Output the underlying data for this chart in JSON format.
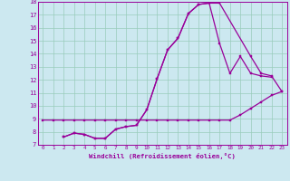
{
  "xlabel": "Windchill (Refroidissement éolien,°C)",
  "bg_color": "#cce8f0",
  "line_color": "#990099",
  "grid_color": "#99ccbb",
  "xlim": [
    -0.5,
    23.5
  ],
  "ylim": [
    7,
    18
  ],
  "xticks": [
    0,
    1,
    2,
    3,
    4,
    5,
    6,
    7,
    8,
    9,
    10,
    11,
    12,
    13,
    14,
    15,
    16,
    17,
    18,
    19,
    20,
    21,
    22,
    23
  ],
  "yticks": [
    7,
    8,
    9,
    10,
    11,
    12,
    13,
    14,
    15,
    16,
    17,
    18
  ],
  "series1_x": [
    0,
    1,
    2,
    3,
    4,
    5,
    6,
    7,
    8,
    9,
    10,
    11,
    12,
    13,
    14,
    15,
    16,
    17,
    18,
    19,
    20,
    21,
    22,
    23
  ],
  "series1_y": [
    8.9,
    8.9,
    8.9,
    8.9,
    8.9,
    8.9,
    8.9,
    8.9,
    8.9,
    8.9,
    8.9,
    8.9,
    8.9,
    8.9,
    8.9,
    8.9,
    8.9,
    8.9,
    8.9,
    9.3,
    9.8,
    10.3,
    10.8,
    11.1
  ],
  "series2_x": [
    2,
    3,
    4,
    5,
    6,
    7,
    8,
    9,
    10,
    11,
    12,
    13,
    14,
    15,
    16,
    17,
    18,
    19,
    20,
    21,
    22
  ],
  "series2_y": [
    7.6,
    7.9,
    7.8,
    7.5,
    7.5,
    8.2,
    8.4,
    8.5,
    9.7,
    12.1,
    14.3,
    15.2,
    17.1,
    17.8,
    17.9,
    14.8,
    12.5,
    13.8,
    12.5,
    12.3,
    12.2
  ],
  "series3_x": [
    2,
    3,
    4,
    5,
    6,
    7,
    8,
    9,
    10,
    11,
    12,
    13,
    14,
    15,
    16,
    17,
    20,
    21,
    22,
    23
  ],
  "series3_y": [
    7.6,
    7.9,
    7.8,
    7.5,
    7.5,
    8.2,
    8.4,
    8.5,
    9.7,
    12.1,
    14.3,
    15.2,
    17.1,
    17.8,
    17.9,
    17.9,
    13.8,
    12.5,
    12.3,
    11.1
  ]
}
